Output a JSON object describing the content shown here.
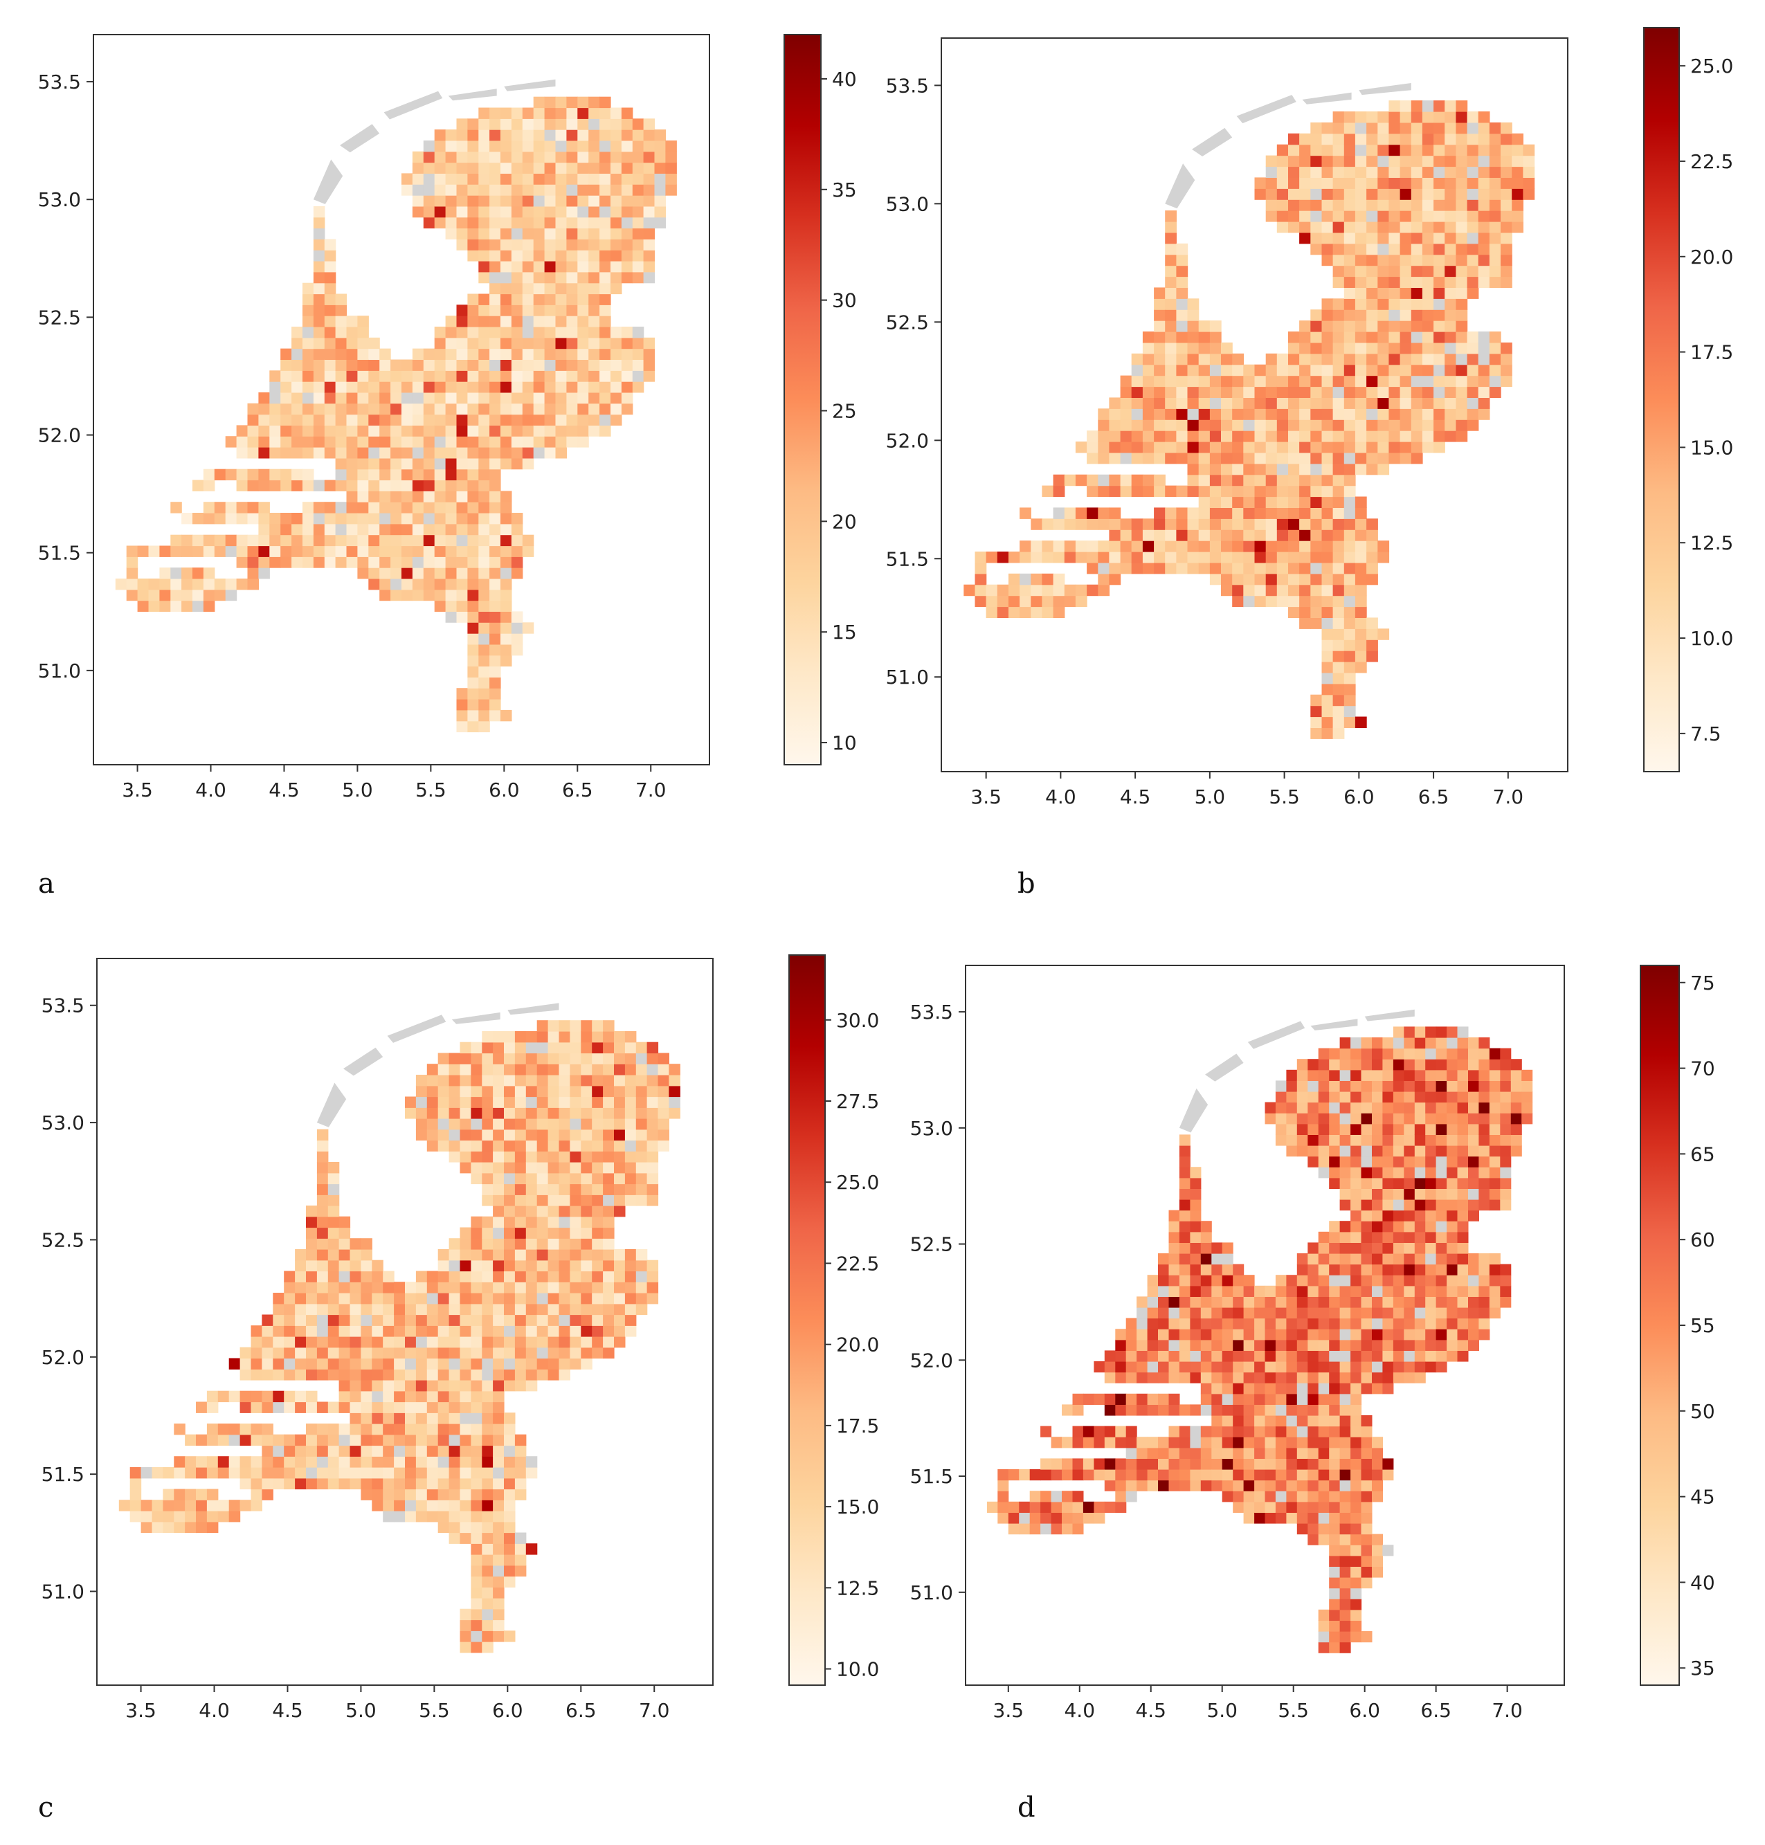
{
  "figure": {
    "colormap": "OrRd",
    "missing_color": "#d3d3d3",
    "panels": [
      {
        "label": "a",
        "x_ticks": [
          "3.5",
          "4.0",
          "4.5",
          "5.0",
          "5.5",
          "6.0",
          "6.5",
          "7.0"
        ],
        "y_ticks": [
          "51.0",
          "51.5",
          "52.0",
          "52.5",
          "53.0",
          "53.5"
        ],
        "colorbar": {
          "min": 9,
          "max": 42,
          "ticks": [
            "10",
            "15",
            "20",
            "25",
            "30",
            "35",
            "40"
          ],
          "tick_values": [
            10,
            15,
            20,
            25,
            30,
            35,
            40
          ]
        },
        "palette_bias": 0.28
      },
      {
        "label": "b",
        "x_ticks": [
          "3.5",
          "4.0",
          "4.5",
          "5.0",
          "5.5",
          "6.0",
          "6.5",
          "7.0"
        ],
        "y_ticks": [
          "51.0",
          "51.5",
          "52.0",
          "52.5",
          "53.0",
          "53.5"
        ],
        "colorbar": {
          "min": 6.5,
          "max": 26,
          "ticks": [
            "7.5",
            "10.0",
            "12.5",
            "15.0",
            "17.5",
            "20.0",
            "22.5",
            "25.0"
          ],
          "tick_values": [
            7.5,
            10,
            12.5,
            15,
            17.5,
            20,
            22.5,
            25
          ]
        },
        "palette_bias": 0.35
      },
      {
        "label": "c",
        "x_ticks": [
          "3.5",
          "4.0",
          "4.5",
          "5.0",
          "5.5",
          "6.0",
          "6.5",
          "7.0"
        ],
        "y_ticks": [
          "51.0",
          "51.5",
          "52.0",
          "52.5",
          "53.0",
          "53.5"
        ],
        "colorbar": {
          "min": 9.5,
          "max": 32,
          "ticks": [
            "10.0",
            "12.5",
            "15.0",
            "17.5",
            "20.0",
            "22.5",
            "25.0",
            "27.5",
            "30.0"
          ],
          "tick_values": [
            10,
            12.5,
            15,
            17.5,
            20,
            22.5,
            25,
            27.5,
            30
          ]
        },
        "palette_bias": 0.32
      },
      {
        "label": "d",
        "x_ticks": [
          "3.5",
          "4.0",
          "4.5",
          "5.0",
          "5.5",
          "6.0",
          "6.5",
          "7.0"
        ],
        "y_ticks": [
          "51.0",
          "51.5",
          "52.0",
          "52.5",
          "53.0",
          "53.5"
        ],
        "colorbar": {
          "min": 34,
          "max": 76,
          "ticks": [
            "35",
            "40",
            "45",
            "50",
            "55",
            "60",
            "65",
            "70",
            "75"
          ],
          "tick_values": [
            35,
            40,
            45,
            50,
            55,
            60,
            65,
            70,
            75
          ]
        },
        "palette_bias": 0.52
      }
    ]
  }
}
